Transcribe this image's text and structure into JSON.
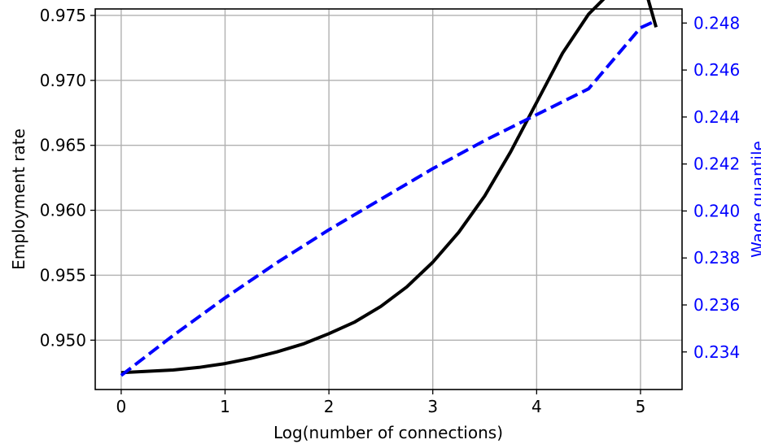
{
  "chart_data": {
    "type": "line",
    "xlabel": "Log(number of connections)",
    "ylabel": "Employment rate",
    "y2label": "Wage quantile",
    "xlim": [
      -0.25,
      5.4
    ],
    "ylim": [
      0.9462,
      0.9755
    ],
    "y2lim": [
      0.2324,
      0.2486
    ],
    "xticks": [
      0,
      1,
      2,
      3,
      4,
      5
    ],
    "yticks": [
      0.95,
      0.955,
      0.96,
      0.965,
      0.97,
      0.975
    ],
    "yticklabels": [
      "0.950",
      "0.955",
      "0.960",
      "0.965",
      "0.970",
      "0.975"
    ],
    "y2ticks": [
      0.234,
      0.236,
      0.238,
      0.24,
      0.242,
      0.244,
      0.246,
      0.248
    ],
    "y2ticklabels": [
      "0.234",
      "0.236",
      "0.238",
      "0.240",
      "0.242",
      "0.244",
      "0.246",
      "0.248"
    ],
    "grid": true,
    "colors": {
      "employment": "#000000",
      "wage": "#0000ff",
      "grid": "#b0b0b0",
      "axis": "#000000"
    },
    "series": [
      {
        "axis": "left",
        "style": "solid",
        "x": [
          0,
          0.25,
          0.5,
          0.75,
          1,
          1.25,
          1.5,
          1.75,
          2,
          2.25,
          2.5,
          2.75,
          3,
          3.25,
          3.5,
          3.75,
          4,
          4.25,
          4.5,
          4.75,
          5,
          5.15
        ],
        "y": [
          0.9475,
          0.9476,
          0.9477,
          0.9479,
          0.9482,
          0.9486,
          0.9491,
          0.9497,
          0.9505,
          0.9514,
          0.9526,
          0.9541,
          0.956,
          0.9583,
          0.9611,
          0.9645,
          0.9683,
          0.9721,
          0.9751,
          0.9771,
          0.9783,
          0.9741
        ]
      },
      {
        "axis": "right",
        "style": "dashed",
        "x": [
          0,
          0.5,
          1,
          1.5,
          2,
          2.5,
          3,
          3.5,
          4,
          4.5,
          5,
          5.15
        ],
        "y": [
          0.233,
          0.2347,
          0.2363,
          0.2378,
          0.2392,
          0.2405,
          0.2418,
          0.243,
          0.2441,
          0.2452,
          0.2478,
          0.2481
        ]
      }
    ]
  }
}
